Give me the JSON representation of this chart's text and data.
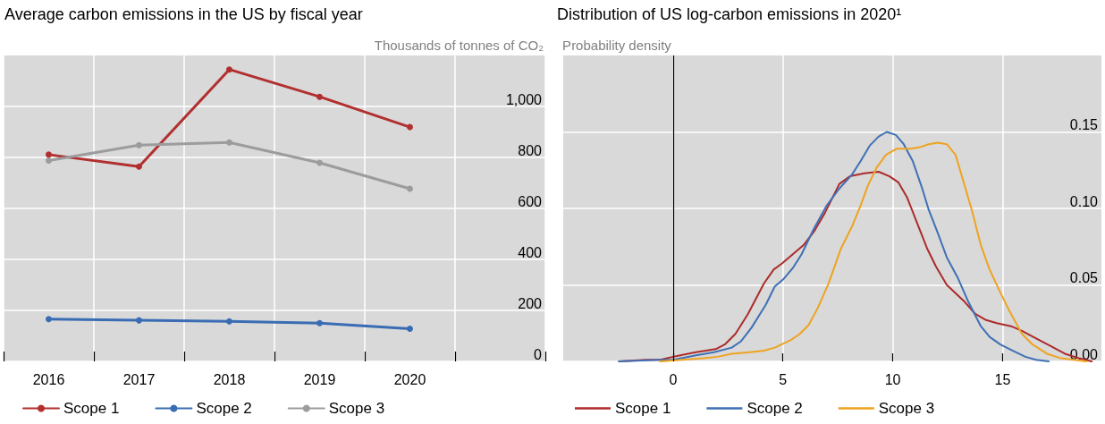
{
  "chart_data": [
    {
      "type": "line",
      "title": "Average carbon emissions in the US by fiscal year",
      "ylabel": "Thousands of tonnes of CO₂",
      "categories": [
        "2016",
        "2017",
        "2018",
        "2019",
        "2020"
      ],
      "series": [
        {
          "name": "Scope 1",
          "color": "#b22f2f",
          "values": [
            811,
            764,
            1145,
            1038,
            919
          ]
        },
        {
          "name": "Scope 2",
          "color": "#3a6cb4",
          "values": [
            166,
            161,
            157,
            150,
            128
          ]
        },
        {
          "name": "Scope 3",
          "color": "#9a9c9e",
          "values": [
            788,
            848,
            859,
            779,
            677
          ]
        }
      ],
      "ylim": [
        0,
        1200
      ],
      "yticks": [
        0,
        200,
        400,
        600,
        800,
        {
          "value": 1000,
          "label": "1,000"
        }
      ],
      "grid": true,
      "legend": "bottom",
      "marker": "circle",
      "line_style": "solid"
    },
    {
      "type": "line",
      "title": "Distribution of US log-carbon emissions in 2020¹",
      "ylabel": "Probability density",
      "series": [
        {
          "name": "Scope 1",
          "color": "#ac2b2b",
          "x": [
            -2.46,
            -1.24,
            -0.59,
            0,
            1.04,
            1.94,
            2.35,
            2.84,
            3.41,
            4.14,
            4.58,
            4.96,
            5.94,
            6.42,
            6.91,
            7.57,
            8.05,
            8.71,
            9.36,
            9.85,
            10.26,
            10.66,
            11.15,
            11.56,
            11.97,
            12.46,
            13.27,
            13.76,
            14.25,
            14.74,
            15.39,
            15.88,
            16.53,
            17.19,
            17.84,
            18.49,
            19.06
          ],
          "values": [
            0,
            0.001,
            0.001,
            0.003,
            0.006,
            0.008,
            0.011,
            0.018,
            0.031,
            0.051,
            0.06,
            0.064,
            0.076,
            0.085,
            0.097,
            0.116,
            0.121,
            0.123,
            0.124,
            0.121,
            0.117,
            0.107,
            0.089,
            0.074,
            0.062,
            0.05,
            0.039,
            0.031,
            0.027,
            0.025,
            0.023,
            0.02,
            0.015,
            0.01,
            0.005,
            0.002,
            0
          ]
        },
        {
          "name": "Scope 2",
          "color": "#3f70b5",
          "x": [
            -2.46,
            -0.59,
            0,
            1.04,
            1.86,
            2.67,
            3.08,
            3.57,
            4.22,
            4.63,
            5.04,
            5.45,
            5.85,
            6.42,
            7.0,
            7.57,
            8.14,
            8.54,
            8.95,
            9.36,
            9.73,
            10.14,
            10.5,
            10.91,
            11.32,
            11.64,
            12.05,
            12.46,
            12.95,
            13.44,
            14.01,
            14.41,
            14.9,
            15.47,
            16.04,
            16.53,
            17.1
          ],
          "values": [
            0,
            0.001,
            0.001,
            0.004,
            0.006,
            0.009,
            0.013,
            0.022,
            0.037,
            0.049,
            0.054,
            0.061,
            0.07,
            0.087,
            0.102,
            0.113,
            0.122,
            0.131,
            0.141,
            0.147,
            0.15,
            0.148,
            0.142,
            0.131,
            0.114,
            0.099,
            0.084,
            0.068,
            0.055,
            0.039,
            0.023,
            0.016,
            0.011,
            0.007,
            0.003,
            0.001,
            0
          ]
        },
        {
          "name": "Scope 3",
          "color": "#eea320",
          "x": [
            -0.59,
            0.39,
            1.37,
            2.02,
            2.67,
            3.49,
            4.14,
            4.63,
            5.36,
            5.77,
            6.18,
            6.59,
            7.08,
            7.65,
            8.14,
            8.54,
            8.87,
            9.28,
            9.69,
            10.17,
            10.83,
            11.23,
            11.64,
            12.05,
            12.46,
            12.86,
            13.19,
            13.6,
            14.01,
            14.41,
            14.9,
            15.31,
            15.88,
            16.37,
            17.02,
            17.67,
            18.82
          ],
          "values": [
            0,
            0.001,
            0.002,
            0.003,
            0.005,
            0.006,
            0.007,
            0.009,
            0.014,
            0.018,
            0.024,
            0.035,
            0.051,
            0.074,
            0.088,
            0.102,
            0.115,
            0.127,
            0.135,
            0.139,
            0.139,
            0.14,
            0.142,
            0.143,
            0.142,
            0.135,
            0.119,
            0.099,
            0.076,
            0.06,
            0.045,
            0.033,
            0.018,
            0.011,
            0.005,
            0.002,
            0
          ]
        }
      ],
      "xlim": [
        -5,
        19.5
      ],
      "xticks": [
        0,
        5,
        10,
        15
      ],
      "ylim": [
        0,
        0.2
      ],
      "yticks": [
        {
          "value": 0,
          "label": "0.00"
        },
        0.05,
        {
          "value": 0.1,
          "label": "0.10"
        },
        0.15
      ],
      "ref_lines": [
        {
          "axis": "x",
          "value": 0,
          "color": "#000000"
        }
      ],
      "grid": true,
      "legend": "bottom",
      "marker": "none",
      "line_style": "solid"
    }
  ]
}
